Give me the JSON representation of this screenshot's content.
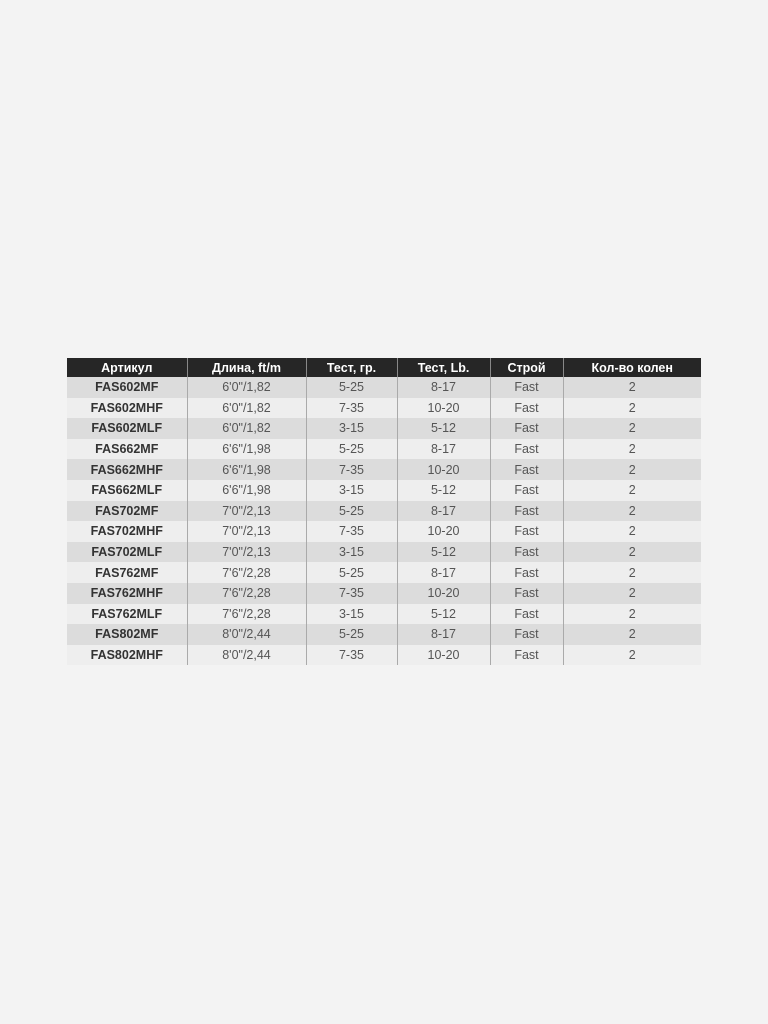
{
  "table": {
    "headers": [
      "Артикул",
      "Длина, ft/m",
      "Тест, гр.",
      "Тест, Lb.",
      "Строй",
      "Кол-во колен"
    ],
    "rows": [
      [
        "FAS602MF",
        "6'0\"/1,82",
        "5-25",
        "8-17",
        "Fast",
        "2"
      ],
      [
        "FAS602MHF",
        "6'0\"/1,82",
        "7-35",
        "10-20",
        "Fast",
        "2"
      ],
      [
        "FAS602MLF",
        "6'0\"/1,82",
        "3-15",
        "5-12",
        "Fast",
        "2"
      ],
      [
        "FAS662MF",
        "6'6\"/1,98",
        "5-25",
        "8-17",
        "Fast",
        "2"
      ],
      [
        "FAS662MHF",
        "6'6\"/1,98",
        "7-35",
        "10-20",
        "Fast",
        "2"
      ],
      [
        "FAS662MLF",
        "6'6\"/1,98",
        "3-15",
        "5-12",
        "Fast",
        "2"
      ],
      [
        "FAS702MF",
        "7'0\"/2,13",
        "5-25",
        "8-17",
        "Fast",
        "2"
      ],
      [
        "FAS702MHF",
        "7'0\"/2,13",
        "7-35",
        "10-20",
        "Fast",
        "2"
      ],
      [
        "FAS702MLF",
        "7'0\"/2,13",
        "3-15",
        "5-12",
        "Fast",
        "2"
      ],
      [
        "FAS762MF",
        "7'6\"/2,28",
        "5-25",
        "8-17",
        "Fast",
        "2"
      ],
      [
        "FAS762MHF",
        "7'6\"/2,28",
        "7-35",
        "10-20",
        "Fast",
        "2"
      ],
      [
        "FAS762MLF",
        "7'6\"/2,28",
        "3-15",
        "5-12",
        "Fast",
        "2"
      ],
      [
        "FAS802MF",
        "8'0\"/2,44",
        "5-25",
        "8-17",
        "Fast",
        "2"
      ],
      [
        "FAS802MHF",
        "8'0\"/2,44",
        "7-35",
        "10-20",
        "Fast",
        "2"
      ]
    ]
  }
}
